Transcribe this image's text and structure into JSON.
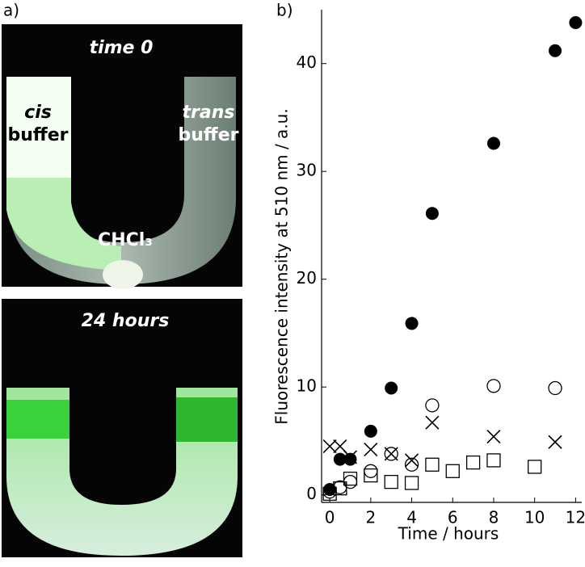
{
  "panel_label": "a)",
  "photos": [
    {
      "caption": "time 0",
      "labels": [
        "cis",
        "buffer",
        "trans",
        "buffer",
        "CHCl₃"
      ]
    },
    {
      "caption": "24 hours"
    }
  ],
  "chart_data": {
    "type": "scatter",
    "panel_label": "b)",
    "xlabel": "Time / hours",
    "ylabel": "Fluorescence intensity at 510 nm / a.u.",
    "xlim": [
      -0.4,
      12.3
    ],
    "ylim": [
      -0.7,
      45
    ],
    "xticks": [
      0,
      2,
      4,
      6,
      8,
      10,
      12
    ],
    "yticks": [
      0,
      10,
      20,
      30,
      40
    ],
    "series": [
      {
        "marker": "filled-circle",
        "color": "#000000",
        "x": [
          0,
          0.5,
          1,
          2,
          3,
          4,
          5,
          8,
          11,
          12
        ],
        "values": [
          0.5,
          3.3,
          3.3,
          5.9,
          9.9,
          15.9,
          26.1,
          32.6,
          41.2,
          43.8
        ]
      },
      {
        "marker": "open-circle",
        "color": "#000000",
        "x": [
          0,
          0.5,
          1,
          2,
          3,
          4,
          5,
          8,
          11
        ],
        "values": [
          0.3,
          0.7,
          1.2,
          2.2,
          3.8,
          2.8,
          8.3,
          10.1,
          9.9
        ]
      },
      {
        "marker": "cross",
        "color": "#000000",
        "x": [
          0,
          0.5,
          1,
          2,
          3,
          4,
          5,
          8,
          11
        ],
        "values": [
          4.5,
          4.5,
          3.5,
          4.2,
          3.8,
          3.2,
          6.7,
          5.4,
          4.9
        ]
      },
      {
        "marker": "open-square",
        "color": "#000000",
        "x": [
          0,
          0.5,
          1,
          2,
          3,
          4,
          5,
          6,
          7,
          8,
          10
        ],
        "values": [
          0.1,
          0.6,
          1.5,
          1.8,
          1.2,
          1.1,
          2.8,
          2.2,
          3.0,
          3.2,
          2.6
        ]
      }
    ]
  }
}
